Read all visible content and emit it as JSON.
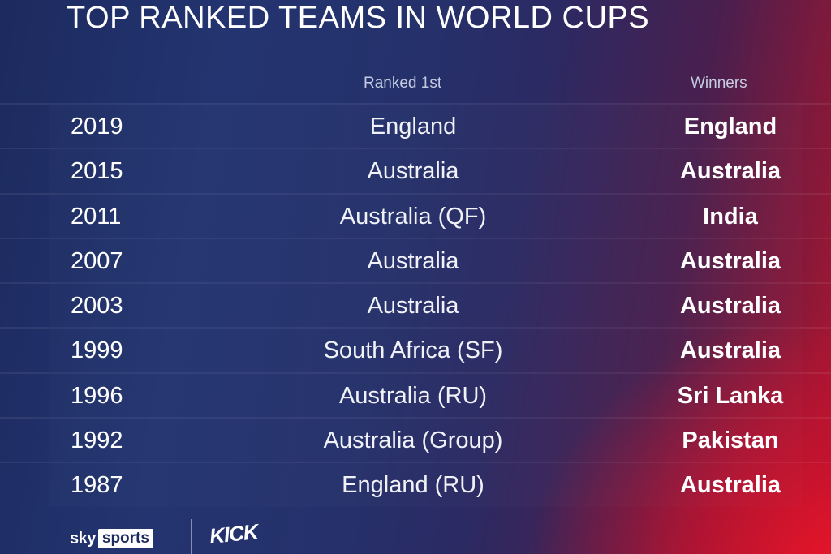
{
  "title": "TOP RANKED TEAMS IN WORLD CUPS",
  "columns": {
    "ranked_first": "Ranked 1st",
    "winners": "Winners"
  },
  "rows": [
    {
      "year": "2019",
      "ranked_first": "England",
      "winner": "England"
    },
    {
      "year": "2015",
      "ranked_first": "Australia",
      "winner": "Australia"
    },
    {
      "year": "2011",
      "ranked_first": "Australia (QF)",
      "winner": "India"
    },
    {
      "year": "2007",
      "ranked_first": "Australia",
      "winner": "Australia"
    },
    {
      "year": "2003",
      "ranked_first": "Australia",
      "winner": "Australia"
    },
    {
      "year": "1999",
      "ranked_first": "South Africa (SF)",
      "winner": "Australia"
    },
    {
      "year": "1996",
      "ranked_first": "Australia (RU)",
      "winner": "Sri Lanka"
    },
    {
      "year": "1992",
      "ranked_first": "Australia (Group)",
      "winner": "Pakistan"
    },
    {
      "year": "1987",
      "ranked_first": "England (RU)",
      "winner": "Australia"
    }
  ],
  "footer": {
    "sky_logo_word": "sky",
    "sky_logo_box": "sports",
    "secondary_logo": "KICK"
  },
  "colors": {
    "background_left": "#1c2a5e",
    "background_right": "#b51530",
    "text": "#ffffff"
  }
}
